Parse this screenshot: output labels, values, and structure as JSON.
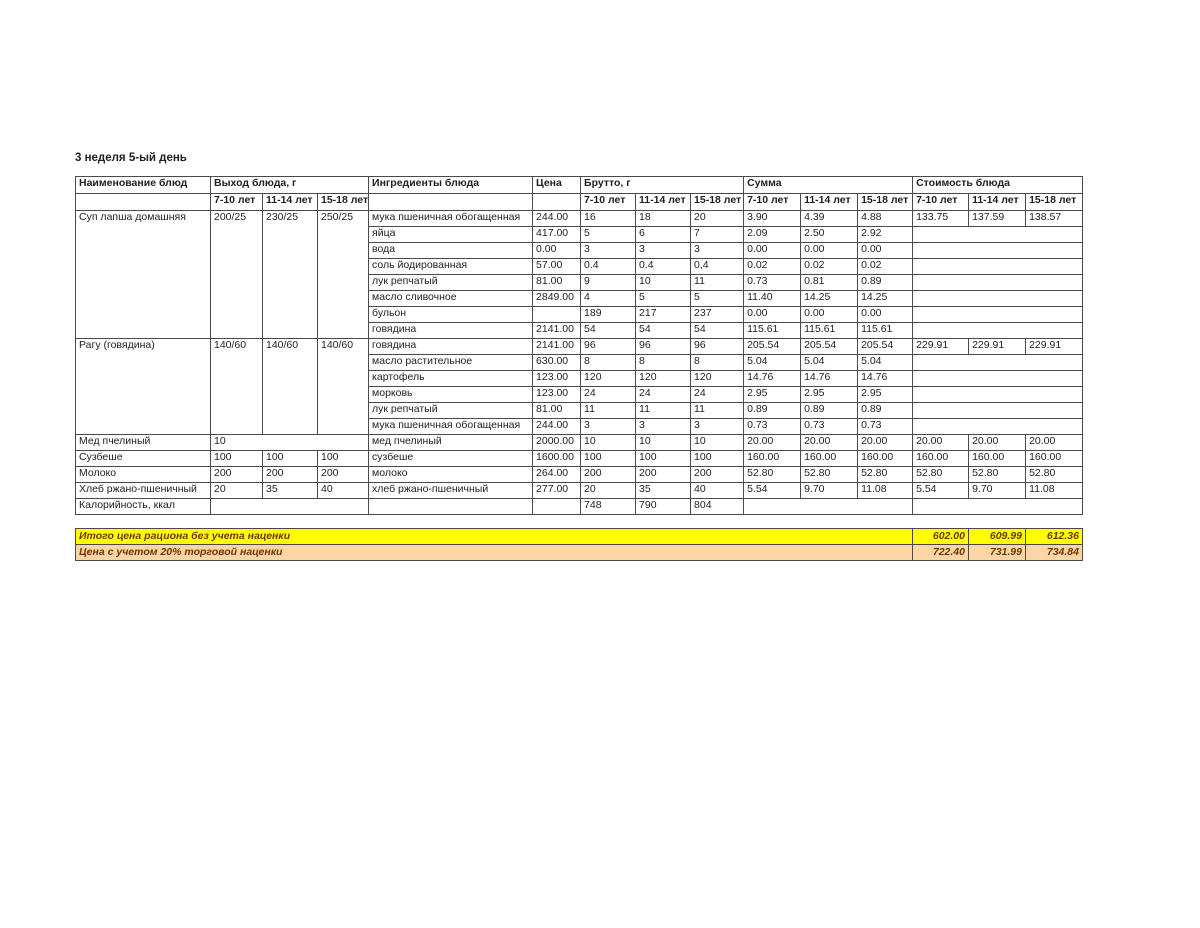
{
  "page": {
    "title": "3 неделя 5-ый день"
  },
  "colors": {
    "grid": "#4a4a4a",
    "totals_text": "#713600",
    "total_row_1_bg": "#ffff00",
    "total_row_2_bg": "#fbd5a6"
  },
  "table": {
    "header": {
      "col_dish": "Наименование блюд",
      "col_yield": "Выход блюда, г",
      "col_ingredients": "Ингредиенты блюда",
      "col_price": "Цена",
      "col_brutto": "Брутто, г",
      "col_sum": "Сумма",
      "col_cost": "Стоимость блюда",
      "age_groups": [
        "7-10 лет",
        "11-14 лет",
        "15-18 лет"
      ]
    },
    "dishes": [
      {
        "name": "Суп лапша домашняя",
        "yields": [
          "200/25",
          "230/25",
          "250/25"
        ],
        "cost": [
          "133.75",
          "137.59",
          "138.57"
        ],
        "ingredients": [
          {
            "name": "мука пшеничная обогащенная",
            "price": "244.00",
            "brutto": [
              "16",
              "18",
              "20"
            ],
            "sum": [
              "3.90",
              "4.39",
              "4.88"
            ]
          },
          {
            "name": "яйца",
            "price": "417.00",
            "brutto": [
              "5",
              "6",
              "7"
            ],
            "sum": [
              "2.09",
              "2.50",
              "2.92"
            ]
          },
          {
            "name": "вода",
            "price": "0.00",
            "brutto": [
              "3",
              "3",
              "3"
            ],
            "sum": [
              "0.00",
              "0.00",
              "0.00"
            ]
          },
          {
            "name": "соль йодированная",
            "price": "57.00",
            "brutto": [
              "0.4",
              "0.4",
              "0,4"
            ],
            "sum": [
              "0.02",
              "0.02",
              "0.02"
            ]
          },
          {
            "name": "лук репчатый",
            "price": "81.00",
            "brutto": [
              "9",
              "10",
              "11"
            ],
            "sum": [
              "0.73",
              "0.81",
              "0.89"
            ]
          },
          {
            "name": "масло сливочное",
            "price": "2849.00",
            "brutto": [
              "4",
              "5",
              "5"
            ],
            "sum": [
              "11.40",
              "14.25",
              "14.25"
            ]
          },
          {
            "name": "бульон",
            "price": "",
            "brutto": [
              "189",
              "217",
              "237"
            ],
            "sum": [
              "0.00",
              "0.00",
              "0.00"
            ]
          },
          {
            "name": "говядина",
            "price": "2141.00",
            "price_align": "right",
            "brutto": [
              "54",
              "54",
              "54"
            ],
            "sum": [
              "115.61",
              "115.61",
              "115.61"
            ]
          }
        ]
      },
      {
        "name": "Рагу (говядина)",
        "yields": [
          "140/60",
          "140/60",
          "140/60"
        ],
        "cost": [
          "229.91",
          "229.91",
          "229.91"
        ],
        "ingredients": [
          {
            "name": "говядина",
            "price": "2141.00",
            "brutto": [
              "96",
              "96",
              "96"
            ],
            "sum": [
              "205.54",
              "205.54",
              "205.54"
            ]
          },
          {
            "name": "масло растительное",
            "price": "630.00",
            "brutto": [
              "8",
              "8",
              "8"
            ],
            "sum": [
              "5.04",
              "5.04",
              "5.04"
            ]
          },
          {
            "name": "картофель",
            "price": "123.00",
            "brutto": [
              "120",
              "120",
              "120"
            ],
            "sum": [
              "14.76",
              "14.76",
              "14.76"
            ]
          },
          {
            "name": "морковь",
            "price": "123.00",
            "brutto": [
              "24",
              "24",
              "24"
            ],
            "sum": [
              "2.95",
              "2.95",
              "2.95"
            ]
          },
          {
            "name": "лук репчатый",
            "price": "81.00",
            "brutto": [
              "11",
              "11",
              "11"
            ],
            "sum": [
              "0.89",
              "0.89",
              "0.89"
            ]
          },
          {
            "name": "мука пшеничная обогащенная",
            "price": "244.00",
            "brutto": [
              "3",
              "3",
              "3"
            ],
            "sum": [
              "0.73",
              "0.73",
              "0.73"
            ]
          }
        ]
      },
      {
        "name": "Мед пчелиный",
        "yield_merged": "10",
        "cost": [
          "20.00",
          "20.00",
          "20.00"
        ],
        "ingredients": [
          {
            "name": "мед пчелиный",
            "price": "2000.00",
            "brutto": [
              "10",
              "10",
              "10"
            ],
            "sum": [
              "20.00",
              "20.00",
              "20.00"
            ]
          }
        ]
      },
      {
        "name": "Сузбеше",
        "yields": [
          "100",
          "100",
          "100"
        ],
        "cost": [
          "160.00",
          "160.00",
          "160.00"
        ],
        "ingredients": [
          {
            "name": "сузбеше",
            "price": "1600.00",
            "brutto": [
              "100",
              "100",
              "100"
            ],
            "sum": [
              "160.00",
              "160.00",
              "160.00"
            ]
          }
        ]
      },
      {
        "name": "Молоко",
        "yields": [
          "200",
          "200",
          "200"
        ],
        "cost": [
          "52.80",
          "52.80",
          "52.80"
        ],
        "ingredients": [
          {
            "name": "молоко",
            "price": "264.00",
            "brutto": [
              "200",
              "200",
              "200"
            ],
            "sum": [
              "52.80",
              "52.80",
              "52.80"
            ]
          }
        ]
      },
      {
        "name": "Хлеб ржано-пшеничный",
        "yields": [
          "20",
          "35",
          "40"
        ],
        "cost": [
          "5.54",
          "9.70",
          "11.08"
        ],
        "ingredients": [
          {
            "name": "хлеб ржано-пшеничный",
            "price": "277.00",
            "brutto": [
              "20",
              "35",
              "40"
            ],
            "sum": [
              "5.54",
              "9.70",
              "11.08"
            ]
          }
        ]
      }
    ],
    "calories_row": {
      "label": "Калорийность, ккал",
      "values": [
        "748",
        "790",
        "804"
      ]
    },
    "totals": [
      {
        "label": "Итого цена рациона без учета наценки",
        "values": [
          "602.00",
          "609.99",
          "612.36"
        ],
        "bg": "#ffff00"
      },
      {
        "label": "Цена с учетом 20% торговой наценки",
        "values": [
          "722.40",
          "731.99",
          "734.84"
        ],
        "bg": "#fbd5a6"
      }
    ]
  }
}
